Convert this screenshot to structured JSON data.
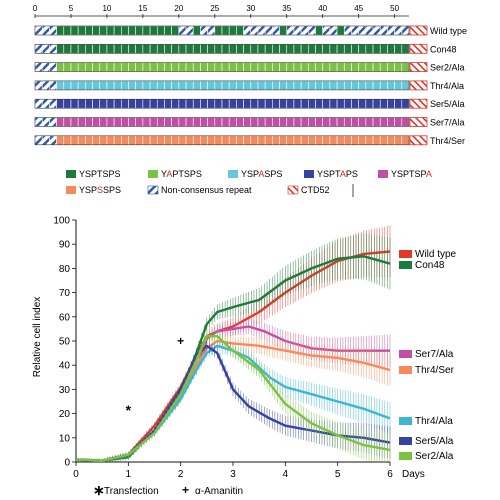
{
  "chart_data": [
    {
      "type": "bar",
      "title": "",
      "xlabel": "",
      "ticks": [
        "0",
        "5",
        "10",
        "15",
        "20",
        "25",
        "30",
        "35",
        "40",
        "45",
        "50"
      ],
      "repeat_count": 52,
      "constructs": [
        {
          "name": "Wild type",
          "pattern": "wildtype"
        },
        {
          "name": "Con48",
          "fill": "#1d7a3a"
        },
        {
          "name": "Ser2/Ala",
          "fill": "#7cc242"
        },
        {
          "name": "Thr4/Ala",
          "fill": "#63c8dc"
        },
        {
          "name": "Ser5/Ala",
          "fill": "#3442a0"
        },
        {
          "name": "Ser7/Ala",
          "fill": "#c24fa3"
        },
        {
          "name": "Thr4/Ser",
          "fill": "#f58a5c"
        }
      ],
      "legend": [
        {
          "pre": "YSPTSPS",
          "mut": "",
          "post": "",
          "color": "#1d7a3a"
        },
        {
          "pre": "Y",
          "mut": "A",
          "post": "PTSPS",
          "color": "#7cc242"
        },
        {
          "pre": "YSP",
          "mut": "A",
          "post": "SPS",
          "color": "#63c8dc"
        },
        {
          "pre": "YSPT",
          "mut": "A",
          "post": "PS",
          "color": "#3442a0"
        },
        {
          "pre": "YSPTSP",
          "mut": "A",
          "post": "",
          "color": "#c24fa3"
        },
        {
          "pre": "YSP",
          "mut": "S",
          "post": "SPS",
          "color": "#f58a5c"
        },
        {
          "pre": "Non-consensus repeat",
          "mut": "",
          "post": "",
          "pattern": "noncons"
        },
        {
          "pre": "CTD52",
          "mut": "",
          "post": "",
          "pattern": "ctd52"
        }
      ]
    },
    {
      "type": "line",
      "title": "",
      "xlabel": "Days",
      "ylabel": "Relative cell index",
      "xlim": [
        0,
        6
      ],
      "ylim": [
        0,
        100
      ],
      "xticks": [
        0,
        1,
        2,
        3,
        4,
        5,
        6
      ],
      "yticks": [
        0,
        10,
        20,
        30,
        40,
        50,
        60,
        70,
        80,
        90,
        100
      ],
      "annotations": [
        {
          "symbol": "*",
          "x": 1,
          "y": 21,
          "label": "Transfection"
        },
        {
          "symbol": "+",
          "x": 2,
          "y": 50,
          "label": "α-Amanitin"
        }
      ],
      "series": [
        {
          "name": "Wild type",
          "color": "#e03a2a",
          "legend_y": 86,
          "points": [
            [
              0,
              1
            ],
            [
              0.5,
              0.5
            ],
            [
              1,
              3
            ],
            [
              1.5,
              15
            ],
            [
              2,
              31
            ],
            [
              2.3,
              44
            ],
            [
              2.5,
              52
            ],
            [
              2.7,
              54
            ],
            [
              3,
              56
            ],
            [
              3.5,
              62
            ],
            [
              4,
              70
            ],
            [
              4.5,
              77
            ],
            [
              5,
              83
            ],
            [
              5.5,
              86
            ],
            [
              6,
              87
            ]
          ]
        },
        {
          "name": "Con48",
          "color": "#1d7a3a",
          "legend_y": 81,
          "points": [
            [
              0,
              1
            ],
            [
              0.5,
              0.5
            ],
            [
              1,
              2
            ],
            [
              1.5,
              13
            ],
            [
              2,
              29
            ],
            [
              2.3,
              45
            ],
            [
              2.5,
              57
            ],
            [
              2.7,
              62
            ],
            [
              3,
              64
            ],
            [
              3.5,
              67
            ],
            [
              4,
              75
            ],
            [
              4.5,
              80
            ],
            [
              5,
              84
            ],
            [
              5.5,
              85
            ],
            [
              6,
              82
            ]
          ]
        },
        {
          "name": "Ser7/Ala",
          "color": "#c24fa3",
          "legend_y": 47,
          "points": [
            [
              0,
              1
            ],
            [
              0.5,
              0.5
            ],
            [
              1,
              3
            ],
            [
              1.5,
              13
            ],
            [
              2,
              27
            ],
            [
              2.3,
              38
            ],
            [
              2.5,
              51
            ],
            [
              2.7,
              54
            ],
            [
              3,
              55
            ],
            [
              3.3,
              56
            ],
            [
              3.6,
              54
            ],
            [
              4,
              50
            ],
            [
              4.5,
              47
            ],
            [
              5,
              46
            ],
            [
              5.5,
              46
            ],
            [
              6,
              46
            ]
          ]
        },
        {
          "name": "Thr4/Ser",
          "color": "#f58a5c",
          "legend_y": 41,
          "points": [
            [
              0,
              1
            ],
            [
              0.5,
              0.5
            ],
            [
              1,
              3
            ],
            [
              1.5,
              12
            ],
            [
              2,
              26
            ],
            [
              2.3,
              40
            ],
            [
              2.5,
              47
            ],
            [
              2.7,
              50
            ],
            [
              3,
              49
            ],
            [
              3.5,
              48
            ],
            [
              4,
              46
            ],
            [
              4.5,
              44
            ],
            [
              5,
              43
            ],
            [
              5.5,
              41
            ],
            [
              6,
              38
            ]
          ]
        },
        {
          "name": "Thr4/Ala",
          "color": "#3bb6cf",
          "legend_y": 18,
          "points": [
            [
              0,
              1
            ],
            [
              0.5,
              0.5
            ],
            [
              1,
              3
            ],
            [
              1.5,
              12
            ],
            [
              2,
              26
            ],
            [
              2.3,
              38
            ],
            [
              2.5,
              45
            ],
            [
              2.7,
              48
            ],
            [
              3,
              46
            ],
            [
              3.3,
              43
            ],
            [
              3.7,
              35
            ],
            [
              4,
              31
            ],
            [
              4.5,
              28
            ],
            [
              5,
              25
            ],
            [
              5.5,
              22
            ],
            [
              6,
              18
            ]
          ]
        },
        {
          "name": "Ser5/Ala",
          "color": "#3442a0",
          "legend_y": 10,
          "points": [
            [
              0,
              1
            ],
            [
              0.5,
              0.5
            ],
            [
              1,
              3
            ],
            [
              1.5,
              13
            ],
            [
              2,
              30
            ],
            [
              2.3,
              44
            ],
            [
              2.5,
              48
            ],
            [
              2.7,
              45
            ],
            [
              3,
              30
            ],
            [
              3.3,
              23
            ],
            [
              3.7,
              18
            ],
            [
              4,
              15
            ],
            [
              4.5,
              13
            ],
            [
              5,
              11
            ],
            [
              5.5,
              10
            ],
            [
              6,
              8
            ]
          ]
        },
        {
          "name": "Ser2/Ala",
          "color": "#7cc242",
          "legend_y": 4,
          "points": [
            [
              0,
              1
            ],
            [
              0.5,
              0.5
            ],
            [
              1,
              3
            ],
            [
              1.5,
              12
            ],
            [
              2,
              28
            ],
            [
              2.3,
              42
            ],
            [
              2.5,
              52
            ],
            [
              2.7,
              52
            ],
            [
              3,
              46
            ],
            [
              3.5,
              38
            ],
            [
              4,
              24
            ],
            [
              4.5,
              16
            ],
            [
              5,
              11
            ],
            [
              5.5,
              7
            ],
            [
              6,
              5
            ]
          ]
        }
      ]
    }
  ],
  "footer": {
    "transfection_symbol": "∗",
    "transfection_label": "Transfection",
    "amanitin_symbol": "+",
    "amanitin_label": "α-Amanitin"
  }
}
